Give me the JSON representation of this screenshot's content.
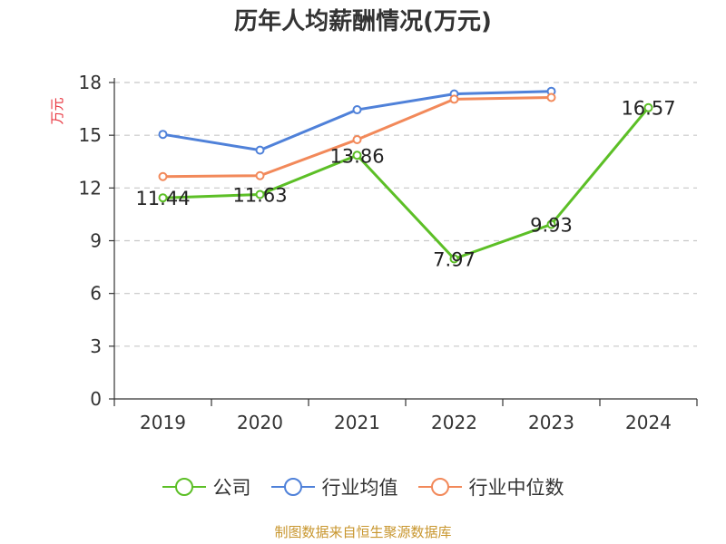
{
  "chart_data": {
    "type": "line",
    "title": "历年人均薪酬情况(万元)",
    "ylabel": "万元",
    "xlabel": "",
    "categories": [
      "2019",
      "2020",
      "2021",
      "2022",
      "2023",
      "2024"
    ],
    "ylim": [
      0,
      18
    ],
    "yticks": [
      0,
      3,
      6,
      9,
      12,
      15,
      18
    ],
    "grid": true,
    "legend_position": "bottom",
    "series": [
      {
        "name": "公司",
        "color": "#5cbf26",
        "values": [
          11.44,
          11.63,
          13.86,
          7.97,
          9.93,
          16.57
        ],
        "labels": [
          "11.44",
          "11.63",
          "13.86",
          "7.97",
          "9.93",
          "16.57"
        ]
      },
      {
        "name": "行业均值",
        "color": "#4f81d9",
        "values": [
          15.05,
          14.15,
          16.45,
          17.35,
          17.5,
          null
        ]
      },
      {
        "name": "行业中位数",
        "color": "#f2895a",
        "values": [
          12.65,
          12.7,
          14.75,
          17.05,
          17.15,
          null
        ]
      }
    ]
  },
  "source": "制图数据来自恒生聚源数据库"
}
